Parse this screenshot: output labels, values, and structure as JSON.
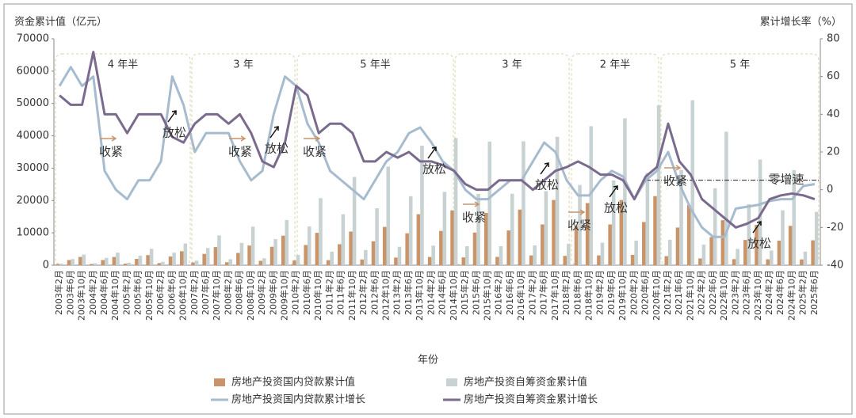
{
  "chart_data": {
    "type": "bar",
    "y_label": "资金累计值（亿元）",
    "y2_label": "累计增长率（%）",
    "x_label": "年份",
    "categories": [
      "2003年2月",
      "2003年6月",
      "2003年10月",
      "2004年2月",
      "2004年6月",
      "2004年10月",
      "2005年2月",
      "2005年6月",
      "2005年10月",
      "2006年2月",
      "2006年6月",
      "2006年10月",
      "2007年2月",
      "2007年6月",
      "2007年10月",
      "2008年2月",
      "2008年6月",
      "2008年10月",
      "2009年2月",
      "2009年6月",
      "2009年10月",
      "2010年2月",
      "2010年6月",
      "2010年10月",
      "2011年2月",
      "2011年6月",
      "2011年10月",
      "2012年2月",
      "2012年6月",
      "2012年10月",
      "2013年2月",
      "2013年6月",
      "2013年10月",
      "2014年2月",
      "2014年6月",
      "2014年10月",
      "2015年2月",
      "2015年6月",
      "2015年10月",
      "2016年2月",
      "2016年6月",
      "2016年10月",
      "2017年2月",
      "2017年6月",
      "2017年10月",
      "2018年2月",
      "2018年6月",
      "2018年10月",
      "2019年2月",
      "2019年6月",
      "2019年10月",
      "2020年2月",
      "2020年6月",
      "2020年10月",
      "2021年2月",
      "2021年6月",
      "2021年10月",
      "2022年2月",
      "2022年6月",
      "2022年10月",
      "2023年2月",
      "2023年6月",
      "2023年10月",
      "2024年2月",
      "2024年6月",
      "2024年10月",
      "2025年2月",
      "2025年6月"
    ],
    "series": [
      {
        "name": "房地产投资国内贷款累计值",
        "type": "bar",
        "color": "#c9946a",
        "values": [
          380,
          1600,
          2560,
          380,
          1600,
          2560,
          470,
          1950,
          3120,
          650,
          2700,
          4320,
          840,
          3500,
          5600,
          910,
          3800,
          6080,
          1370,
          5700,
          9120,
          1500,
          6250,
          10000,
          1560,
          6500,
          10400,
          1780,
          7400,
          11840,
          2360,
          9850,
          15760,
          2540,
          10600,
          16960,
          2420,
          10100,
          16160,
          2580,
          10750,
          17200,
          3020,
          12600,
          20160,
          2880,
          12000,
          19200,
          3020,
          12600,
          20160,
          3200,
          13350,
          21360,
          2800,
          11650,
          18640,
          2090,
          8700,
          13920,
          1870,
          7800,
          12480,
          1820,
          7600,
          12160,
          1800,
          7700
        ]
      },
      {
        "name": "房地产投资自筹资金累计值",
        "type": "bar",
        "color": "#c8d2d2",
        "values": [
          500,
          1900,
          3280,
          600,
          2250,
          3900,
          780,
          2930,
          5070,
          1030,
          3870,
          6710,
          1420,
          5310,
          9200,
          1840,
          6890,
          11930,
          2150,
          8060,
          13960,
          3190,
          11970,
          20750,
          4200,
          15750,
          27300,
          4690,
          17600,
          30500,
          5690,
          21330,
          36970,
          6050,
          22680,
          39310,
          5880,
          22050,
          38220,
          5890,
          22100,
          38300,
          6110,
          22900,
          39700,
          6610,
          24800,
          42980,
          6980,
          26190,
          45400,
          7610,
          28530,
          49450,
          7850,
          29430,
          51010,
          6350,
          23800,
          41260,
          5030,
          18860,
          32680,
          4520,
          16970,
          29410,
          4200,
          16500
        ]
      },
      {
        "name": "房地产投资国内贷款累计增长",
        "type": "line",
        "axis": "y2",
        "color": "#a7bbcf",
        "values": [
          55,
          65,
          55,
          60,
          10,
          0,
          -5,
          5,
          5,
          15,
          60,
          45,
          20,
          30,
          30,
          30,
          15,
          5,
          10,
          40,
          60,
          55,
          35,
          25,
          10,
          5,
          0,
          -5,
          5,
          15,
          20,
          30,
          33,
          25,
          15,
          10,
          0,
          -5,
          -5,
          0,
          5,
          5,
          15,
          25,
          20,
          5,
          -3,
          -3,
          5,
          10,
          7,
          -5,
          5,
          10,
          20,
          3,
          -10,
          -20,
          -25,
          -25,
          -10,
          -9,
          -8,
          -6,
          -5,
          -5,
          2,
          3
        ]
      },
      {
        "name": "房地产投资自筹资金累计增长",
        "type": "line",
        "axis": "y2",
        "color": "#7a6a8d",
        "values": [
          50,
          45,
          45,
          73,
          40,
          40,
          30,
          40,
          40,
          40,
          28,
          25,
          35,
          40,
          40,
          35,
          40,
          30,
          15,
          12,
          25,
          55,
          50,
          30,
          35,
          35,
          30,
          15,
          15,
          20,
          17,
          20,
          15,
          15,
          13,
          10,
          3,
          0,
          0,
          5,
          5,
          5,
          0,
          5,
          10,
          12,
          15,
          12,
          8,
          8,
          5,
          -5,
          7,
          12,
          35,
          15,
          8,
          -5,
          -10,
          -15,
          -20,
          -18,
          -15,
          -5,
          -3,
          -2,
          -3,
          -5
        ]
      }
    ],
    "ylim": [
      0,
      70000
    ],
    "yticks": [
      0,
      10000,
      20000,
      30000,
      40000,
      50000,
      60000,
      70000
    ],
    "y2lim": [
      -40,
      80
    ],
    "y2ticks": [
      -40,
      -20,
      0,
      20,
      40,
      60,
      80
    ],
    "phases": [
      "4 年半",
      "3 年",
      "5 年半",
      "3 年",
      "2 年半",
      "5 年"
    ],
    "annotations": [
      "收紧",
      "放松",
      "收紧",
      "放松",
      "收紧",
      "放松",
      "收紧",
      "放松",
      "收紧",
      "放松",
      "收紧",
      "放松",
      "零增速"
    ]
  }
}
